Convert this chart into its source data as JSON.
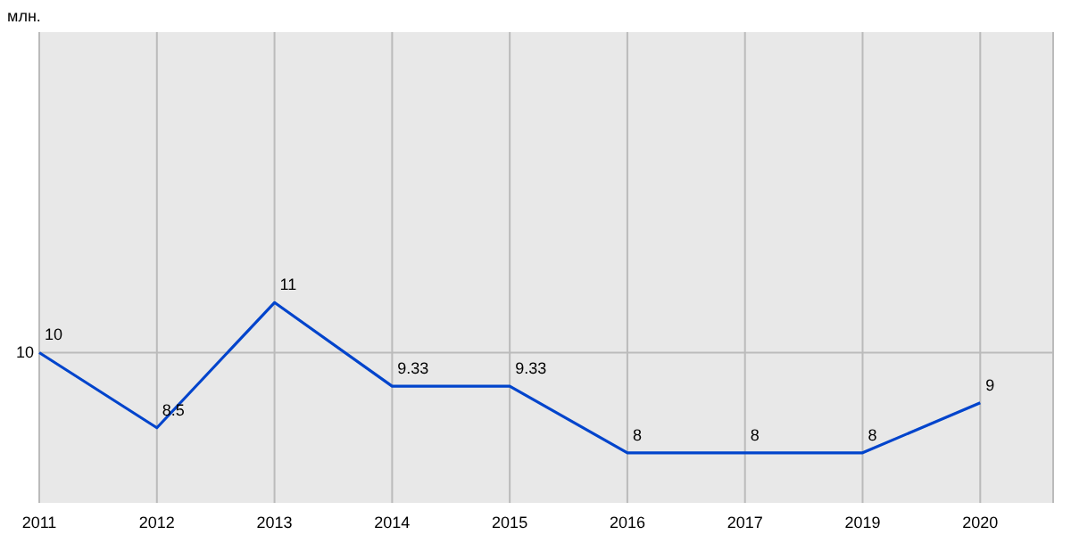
{
  "chart_data": {
    "type": "line",
    "ylabel": "млн.",
    "categories": [
      "2011",
      "2012",
      "2013",
      "2014",
      "2015",
      "2016",
      "2017",
      "2019",
      "2020"
    ],
    "series": [
      {
        "color": "#0044cc",
        "values": [
          10,
          8.5,
          11,
          9.33,
          9.33,
          8,
          8,
          8,
          9
        ]
      }
    ],
    "ylim": [
      7,
      16.4
    ],
    "ref_lines": [
      {
        "axis": "y",
        "value": 10,
        "label": "10",
        "color": "#bbbbbb"
      }
    ],
    "grid": "x",
    "data_labels": true,
    "marker": "none",
    "line_style": "solid"
  }
}
